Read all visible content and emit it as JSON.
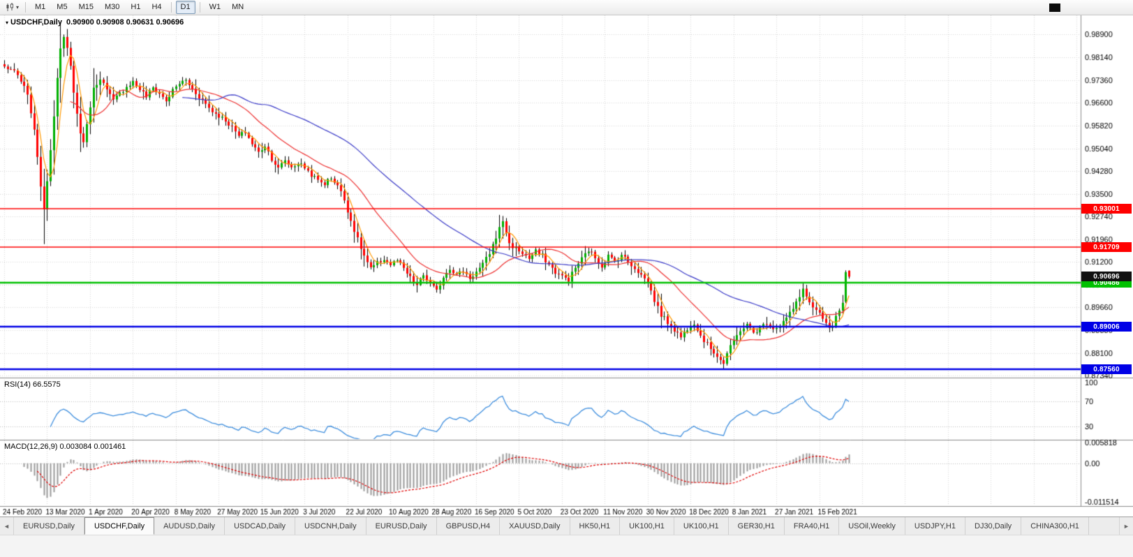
{
  "toolbar": {
    "caret": "▾",
    "timeframes": [
      "M1",
      "M5",
      "M15",
      "M30",
      "H1",
      "H4",
      "D1",
      "W1",
      "MN"
    ],
    "active_timeframe": "D1"
  },
  "chart": {
    "dropdown_glyph": "▾",
    "title_symbol": "USDCHF,Daily",
    "title_ohlc": "0.90900 0.90908 0.90631 0.90696",
    "current_price": "0.90696",
    "current_price_badge_color": "#111111",
    "price_axis_ticks": [
      "0.98900",
      "0.98140",
      "0.97360",
      "0.96600",
      "0.95820",
      "0.95040",
      "0.94280",
      "0.93500",
      "0.92740",
      "0.91960",
      "0.91200",
      "0.90420",
      "0.89660",
      "0.88880",
      "0.88100",
      "0.87340"
    ],
    "hlines": [
      {
        "label": "0.93001",
        "price": 0.93001,
        "color": "#ff0000",
        "width": 1.5
      },
      {
        "label": "0.91709",
        "price": 0.91709,
        "color": "#ff0000",
        "width": 1.5
      },
      {
        "label": "0.90486",
        "price": 0.90486,
        "color": "#00c000",
        "width": 2.5
      },
      {
        "label": "0.89006",
        "price": 0.89006,
        "color": "#0000e6",
        "width": 2.5
      },
      {
        "label": "0.87560",
        "price": 0.8756,
        "color": "#0000e6",
        "width": 2.5
      }
    ],
    "date_labels": [
      "24 Feb 2020",
      "13 Mar 2020",
      "1 Apr 2020",
      "20 Apr 2020",
      "8 May 2020",
      "27 May 2020",
      "15 Jun 2020",
      "3 Jul 2020",
      "22 Jul 2020",
      "10 Aug 2020",
      "28 Aug 2020",
      "16 Sep 2020",
      "5 Oct 2020",
      "23 Oct 2020",
      "11 Nov 2020",
      "30 Nov 2020",
      "18 Dec 2020",
      "8 Jan 2021",
      "27 Jan 2021",
      "15 Feb 2021"
    ]
  },
  "rsi": {
    "label": "RSI(14)",
    "value": "66.5575",
    "axis": [
      "100",
      "70",
      "30"
    ]
  },
  "macd": {
    "label": "MACD(12,26,9)",
    "values": "0.003084 0.001461",
    "axis_max": "0.005818",
    "axis_zero": "0.00",
    "axis_min": "-0.011514"
  },
  "tabs": {
    "left_arrow": "◄",
    "right_arrow": "►",
    "active_index": 1,
    "items": [
      "EURUSD,Daily",
      "USDCHF,Daily",
      "AUDUSD,Daily",
      "USDCAD,Daily",
      "USDCNH,Daily",
      "EURUSD,Daily",
      "GBPUSD,H4",
      "XAUUSD,Daily",
      "HK50,H1",
      "UK100,H1",
      "UK100,H1",
      "GER30,H1",
      "FRA40,H1",
      "USOil,Weekly",
      "USDJPY,H1",
      "DJ30,Daily",
      "CHINA300,H1"
    ]
  },
  "chart_data": {
    "type": "candlestick",
    "symbol": "USDCHF",
    "timeframe": "Daily",
    "bars": 257,
    "price_range": {
      "max": 0.9955,
      "min": 0.873
    },
    "macd_range": {
      "max": 0.0063,
      "min": -0.012
    },
    "rsi_period": 14,
    "rsi_levels": [
      70,
      30
    ],
    "macd_params": [
      12,
      26,
      9
    ],
    "ma": [
      {
        "period": 5,
        "color": "#ff9900"
      },
      {
        "period": 21,
        "color": "#ee3030"
      },
      {
        "period": 55,
        "color": "#3a3ac8"
      }
    ],
    "style": {
      "up": "#00b000",
      "down": "#ff0000",
      "wick": "#000000",
      "rsi": "#3e8ede",
      "hist": "#9a9a9a",
      "signal": "#e00000",
      "grid": "#d8d8d8"
    },
    "close_anchors": [
      [
        0,
        0.978
      ],
      [
        2,
        0.9772
      ],
      [
        4,
        0.975
      ],
      [
        6,
        0.971
      ],
      [
        7,
        0.968
      ],
      [
        8,
        0.963
      ],
      [
        9,
        0.956
      ],
      [
        10,
        0.948
      ],
      [
        11,
        0.938
      ],
      [
        12,
        0.929
      ],
      [
        13,
        0.94
      ],
      [
        14,
        0.95
      ],
      [
        15,
        0.962
      ],
      [
        16,
        0.975
      ],
      [
        17,
        0.984
      ],
      [
        18,
        0.9875
      ],
      [
        19,
        0.984
      ],
      [
        20,
        0.978
      ],
      [
        21,
        0.97
      ],
      [
        22,
        0.962
      ],
      [
        23,
        0.9555
      ],
      [
        24,
        0.953
      ],
      [
        25,
        0.958
      ],
      [
        26,
        0.965
      ],
      [
        27,
        0.9705
      ],
      [
        29,
        0.9745
      ],
      [
        31,
        0.97
      ],
      [
        33,
        0.9665
      ],
      [
        35,
        0.969
      ],
      [
        37,
        0.9715
      ],
      [
        39,
        0.973
      ],
      [
        41,
        0.9705
      ],
      [
        43,
        0.968
      ],
      [
        45,
        0.971
      ],
      [
        47,
        0.969
      ],
      [
        49,
        0.9665
      ],
      [
        51,
        0.97
      ],
      [
        53,
        0.9725
      ],
      [
        55,
        0.9735
      ],
      [
        57,
        0.9705
      ],
      [
        59,
        0.968
      ],
      [
        61,
        0.9655
      ],
      [
        63,
        0.963
      ],
      [
        65,
        0.9615
      ],
      [
        67,
        0.96
      ],
      [
        69,
        0.9575
      ],
      [
        71,
        0.9545
      ],
      [
        73,
        0.956
      ],
      [
        75,
        0.952
      ],
      [
        77,
        0.949
      ],
      [
        79,
        0.9515
      ],
      [
        81,
        0.947
      ],
      [
        83,
        0.9435
      ],
      [
        85,
        0.9465
      ],
      [
        87,
        0.944
      ],
      [
        89,
        0.9455
      ],
      [
        91,
        0.944
      ],
      [
        93,
        0.9415
      ],
      [
        95,
        0.9395
      ],
      [
        97,
        0.9385
      ],
      [
        99,
        0.9405
      ],
      [
        101,
        0.938
      ],
      [
        103,
        0.933
      ],
      [
        105,
        0.926
      ],
      [
        107,
        0.9195
      ],
      [
        109,
        0.914
      ],
      [
        111,
        0.9095
      ],
      [
        113,
        0.9115
      ],
      [
        115,
        0.913
      ],
      [
        117,
        0.911
      ],
      [
        119,
        0.9125
      ],
      [
        121,
        0.9095
      ],
      [
        123,
        0.9065
      ],
      [
        125,
        0.904
      ],
      [
        127,
        0.9075
      ],
      [
        129,
        0.9045
      ],
      [
        131,
        0.902
      ],
      [
        133,
        0.907
      ],
      [
        135,
        0.91
      ],
      [
        137,
        0.9075
      ],
      [
        139,
        0.909
      ],
      [
        141,
        0.9065
      ],
      [
        143,
        0.9085
      ],
      [
        145,
        0.911
      ],
      [
        147,
        0.915
      ],
      [
        149,
        0.9205
      ],
      [
        151,
        0.926
      ],
      [
        152,
        0.922
      ],
      [
        153,
        0.918
      ],
      [
        155,
        0.9165
      ],
      [
        157,
        0.915
      ],
      [
        159,
        0.913
      ],
      [
        161,
        0.9155
      ],
      [
        163,
        0.914
      ],
      [
        165,
        0.911
      ],
      [
        167,
        0.9085
      ],
      [
        169,
        0.907
      ],
      [
        171,
        0.906
      ],
      [
        173,
        0.91
      ],
      [
        175,
        0.913
      ],
      [
        177,
        0.916
      ],
      [
        179,
        0.9135
      ],
      [
        181,
        0.9105
      ],
      [
        183,
        0.914
      ],
      [
        185,
        0.912
      ],
      [
        187,
        0.9145
      ],
      [
        189,
        0.912
      ],
      [
        191,
        0.91
      ],
      [
        193,
        0.9075
      ],
      [
        195,
        0.905
      ],
      [
        197,
        0.899
      ],
      [
        199,
        0.894
      ],
      [
        201,
        0.8915
      ],
      [
        203,
        0.889
      ],
      [
        205,
        0.8865
      ],
      [
        207,
        0.8895
      ],
      [
        209,
        0.8915
      ],
      [
        211,
        0.887
      ],
      [
        213,
        0.884
      ],
      [
        215,
        0.8815
      ],
      [
        217,
        0.879
      ],
      [
        218,
        0.8775
      ],
      [
        219,
        0.881
      ],
      [
        221,
        0.885
      ],
      [
        223,
        0.889
      ],
      [
        225,
        0.8905
      ],
      [
        227,
        0.888
      ],
      [
        229,
        0.8895
      ],
      [
        231,
        0.8915
      ],
      [
        233,
        0.8895
      ],
      [
        235,
        0.8905
      ],
      [
        237,
        0.893
      ],
      [
        239,
        0.896
      ],
      [
        241,
        0.9
      ],
      [
        242,
        0.9035
      ],
      [
        243,
        0.9
      ],
      [
        245,
        0.8965
      ],
      [
        247,
        0.894
      ],
      [
        249,
        0.891
      ],
      [
        250,
        0.889
      ],
      [
        251,
        0.8905
      ],
      [
        252,
        0.893
      ],
      [
        253,
        0.8955
      ],
      [
        254,
        0.8975
      ],
      [
        255,
        0.9085
      ],
      [
        256,
        0.907
      ]
    ],
    "bar_overrides": {
      "high": [
        [
          18,
          0.989
        ]
      ],
      "low": [
        [
          12,
          0.918
        ],
        [
          218,
          0.8756
        ]
      ]
    },
    "explicit_bars": [
      [
        255,
        0.8985,
        0.9091,
        0.898,
        0.9085
      ],
      [
        256,
        0.909,
        0.90908,
        0.90631,
        0.90696
      ]
    ]
  }
}
